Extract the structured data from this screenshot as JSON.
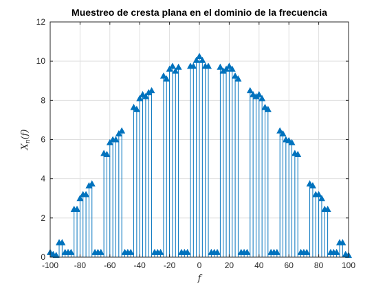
{
  "chart_data": {
    "type": "stem",
    "title": "Muestreo de cresta plana en el dominio de la frecuencia",
    "xlabel": "f",
    "ylabel": "X_n(f)",
    "ylabel_main": "X",
    "ylabel_sub": "n",
    "ylabel_tail": "(f)",
    "xlim": [
      -100,
      100
    ],
    "ylim": [
      0,
      12
    ],
    "xticks": [
      -100,
      -80,
      -60,
      -40,
      -20,
      0,
      20,
      40,
      60,
      80,
      100
    ],
    "yticks": [
      0,
      2,
      4,
      6,
      8,
      10,
      12
    ],
    "grid": true,
    "marker": "triangle-up",
    "color": "#0072BD",
    "series": [
      {
        "points": [
          [
            -100,
            0.25
          ],
          [
            -98,
            0.15
          ],
          [
            -96,
            0.1
          ],
          [
            -94,
            0.75
          ],
          [
            -92,
            0.75
          ],
          [
            -90,
            0.25
          ],
          [
            -88,
            0.25
          ],
          [
            -86,
            0.25
          ],
          [
            -84,
            2.45
          ],
          [
            -82,
            2.45
          ],
          [
            -80,
            3.0
          ],
          [
            -78,
            3.2
          ],
          [
            -76,
            3.2
          ],
          [
            -74,
            3.65
          ],
          [
            -72,
            3.75
          ],
          [
            -70,
            0.25
          ],
          [
            -68,
            0.25
          ],
          [
            -66,
            0.25
          ],
          [
            -64,
            5.3
          ],
          [
            -62,
            5.25
          ],
          [
            -60,
            5.85
          ],
          [
            -58,
            6.0
          ],
          [
            -56,
            6.0
          ],
          [
            -54,
            6.3
          ],
          [
            -52,
            6.45
          ],
          [
            -50,
            0.25
          ],
          [
            -48,
            0.25
          ],
          [
            -46,
            0.25
          ],
          [
            -44,
            7.65
          ],
          [
            -42,
            7.55
          ],
          [
            -40,
            8.1
          ],
          [
            -38,
            8.3
          ],
          [
            -36,
            8.2
          ],
          [
            -34,
            8.4
          ],
          [
            -32,
            8.5
          ],
          [
            -30,
            0.25
          ],
          [
            -28,
            0.25
          ],
          [
            -26,
            0.25
          ],
          [
            -24,
            9.25
          ],
          [
            -22,
            9.1
          ],
          [
            -20,
            9.6
          ],
          [
            -18,
            9.75
          ],
          [
            -16,
            9.5
          ],
          [
            -14,
            9.7
          ],
          [
            -12,
            0.25
          ],
          [
            -10,
            0.25
          ],
          [
            -8,
            0.25
          ],
          [
            -6,
            9.75
          ],
          [
            -4,
            9.75
          ],
          [
            -2,
            10.05
          ],
          [
            0,
            10.25
          ],
          [
            2,
            10.05
          ],
          [
            4,
            9.75
          ],
          [
            6,
            9.75
          ],
          [
            8,
            0.25
          ],
          [
            10,
            0.25
          ],
          [
            12,
            0.25
          ],
          [
            14,
            9.7
          ],
          [
            16,
            9.5
          ],
          [
            18,
            9.6
          ],
          [
            20,
            9.75
          ],
          [
            22,
            9.6
          ],
          [
            24,
            9.25
          ],
          [
            26,
            9.1
          ],
          [
            28,
            0.25
          ],
          [
            30,
            0.25
          ],
          [
            32,
            0.25
          ],
          [
            34,
            8.5
          ],
          [
            36,
            8.3
          ],
          [
            38,
            8.2
          ],
          [
            40,
            8.3
          ],
          [
            42,
            8.1
          ],
          [
            44,
            7.65
          ],
          [
            46,
            7.55
          ],
          [
            48,
            0.25
          ],
          [
            50,
            0.25
          ],
          [
            52,
            0.25
          ],
          [
            54,
            6.45
          ],
          [
            56,
            6.3
          ],
          [
            58,
            6.0
          ],
          [
            60,
            5.95
          ],
          [
            62,
            5.85
          ],
          [
            64,
            5.3
          ],
          [
            66,
            5.25
          ],
          [
            68,
            0.25
          ],
          [
            70,
            0.25
          ],
          [
            72,
            0.25
          ],
          [
            74,
            3.75
          ],
          [
            76,
            3.65
          ],
          [
            78,
            3.2
          ],
          [
            80,
            3.2
          ],
          [
            82,
            3.0
          ],
          [
            84,
            2.45
          ],
          [
            86,
            2.45
          ],
          [
            88,
            0.25
          ],
          [
            90,
            0.25
          ],
          [
            92,
            0.25
          ],
          [
            94,
            0.75
          ],
          [
            96,
            0.75
          ],
          [
            98,
            0.15
          ],
          [
            100,
            0.1
          ]
        ]
      }
    ]
  }
}
